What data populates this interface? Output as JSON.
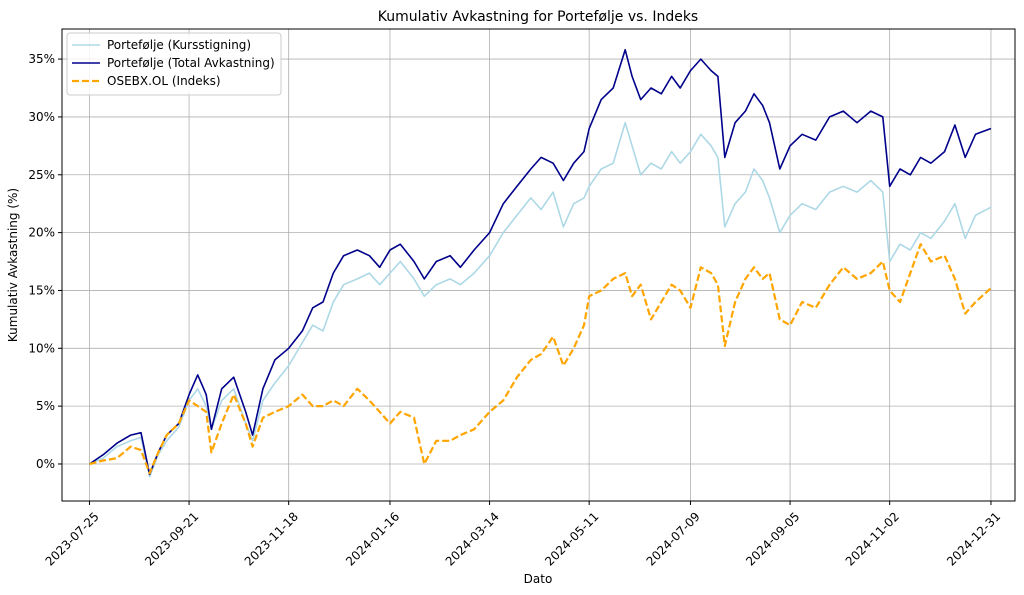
{
  "chart_data": {
    "type": "line",
    "title": "Kumulativ Avkastning for Portefølje vs. Indeks",
    "xlabel": "Dato",
    "ylabel": "Kumulativ Avkastning (%)",
    "x_tick_labels": [
      "2023-07-25",
      "2023-09-21",
      "2023-11-18",
      "2024-01-16",
      "2024-03-14",
      "2024-05-11",
      "2024-07-09",
      "2024-09-05",
      "2024-11-02",
      "2024-12-31"
    ],
    "y_tick_labels": [
      "0%",
      "5%",
      "10%",
      "15%",
      "20%",
      "25%",
      "30%",
      "35%"
    ],
    "y_ticks": [
      0,
      5,
      10,
      15,
      20,
      25,
      30,
      35
    ],
    "xlim": [
      "2023-07-09",
      "2025-01-14"
    ],
    "ylim": [
      -3.2,
      37.6
    ],
    "grid": true,
    "legend_position": "top-left",
    "series": [
      {
        "name": "Portefølje (Kursstigning)",
        "color": "#add8e6",
        "dash": "solid",
        "points": [
          [
            "2023-07-25",
            0.0
          ],
          [
            "2023-08-02",
            0.5
          ],
          [
            "2023-08-10",
            1.5
          ],
          [
            "2023-08-18",
            2.0
          ],
          [
            "2023-08-24",
            2.3
          ],
          [
            "2023-08-29",
            -1.1
          ],
          [
            "2023-09-03",
            0.8
          ],
          [
            "2023-09-08",
            2.0
          ],
          [
            "2023-09-15",
            3.2
          ],
          [
            "2023-09-21",
            5.5
          ],
          [
            "2023-09-26",
            6.5
          ],
          [
            "2023-10-01",
            5.0
          ],
          [
            "2023-10-04",
            3.0
          ],
          [
            "2023-10-10",
            5.5
          ],
          [
            "2023-10-17",
            6.5
          ],
          [
            "2023-10-24",
            3.5
          ],
          [
            "2023-10-28",
            2.0
          ],
          [
            "2023-11-03",
            5.5
          ],
          [
            "2023-11-10",
            7.0
          ],
          [
            "2023-11-18",
            8.5
          ],
          [
            "2023-11-26",
            10.5
          ],
          [
            "2023-12-02",
            12.0
          ],
          [
            "2023-12-08",
            11.5
          ],
          [
            "2023-12-14",
            14.0
          ],
          [
            "2023-12-20",
            15.5
          ],
          [
            "2023-12-28",
            16.0
          ],
          [
            "2024-01-04",
            16.5
          ],
          [
            "2024-01-10",
            15.5
          ],
          [
            "2024-01-16",
            16.5
          ],
          [
            "2024-01-22",
            17.5
          ],
          [
            "2024-01-30",
            16.0
          ],
          [
            "2024-02-05",
            14.5
          ],
          [
            "2024-02-12",
            15.5
          ],
          [
            "2024-02-20",
            16.0
          ],
          [
            "2024-02-26",
            15.5
          ],
          [
            "2024-03-05",
            16.5
          ],
          [
            "2024-03-14",
            18.0
          ],
          [
            "2024-03-22",
            20.0
          ],
          [
            "2024-03-30",
            21.5
          ],
          [
            "2024-04-07",
            23.0
          ],
          [
            "2024-04-13",
            22.0
          ],
          [
            "2024-04-20",
            23.5
          ],
          [
            "2024-04-26",
            20.5
          ],
          [
            "2024-05-02",
            22.5
          ],
          [
            "2024-05-08",
            23.0
          ],
          [
            "2024-05-11",
            24.0
          ],
          [
            "2024-05-18",
            25.5
          ],
          [
            "2024-05-25",
            26.0
          ],
          [
            "2024-06-01",
            29.5
          ],
          [
            "2024-06-05",
            27.5
          ],
          [
            "2024-06-10",
            25.0
          ],
          [
            "2024-06-16",
            26.0
          ],
          [
            "2024-06-22",
            25.5
          ],
          [
            "2024-06-28",
            27.0
          ],
          [
            "2024-07-03",
            26.0
          ],
          [
            "2024-07-09",
            27.0
          ],
          [
            "2024-07-15",
            28.5
          ],
          [
            "2024-07-21",
            27.5
          ],
          [
            "2024-07-25",
            26.5
          ],
          [
            "2024-07-29",
            20.5
          ],
          [
            "2024-08-04",
            22.5
          ],
          [
            "2024-08-10",
            23.5
          ],
          [
            "2024-08-15",
            25.5
          ],
          [
            "2024-08-20",
            24.5
          ],
          [
            "2024-08-24",
            23.0
          ],
          [
            "2024-08-30",
            20.0
          ],
          [
            "2024-09-05",
            21.5
          ],
          [
            "2024-09-12",
            22.5
          ],
          [
            "2024-09-20",
            22.0
          ],
          [
            "2024-09-28",
            23.5
          ],
          [
            "2024-10-06",
            24.0
          ],
          [
            "2024-10-14",
            23.5
          ],
          [
            "2024-10-22",
            24.5
          ],
          [
            "2024-10-29",
            23.5
          ],
          [
            "2024-11-02",
            17.5
          ],
          [
            "2024-11-08",
            19.0
          ],
          [
            "2024-11-14",
            18.5
          ],
          [
            "2024-11-20",
            20.0
          ],
          [
            "2024-11-26",
            19.5
          ],
          [
            "2024-12-04",
            21.0
          ],
          [
            "2024-12-10",
            22.5
          ],
          [
            "2024-12-16",
            19.5
          ],
          [
            "2024-12-22",
            21.5
          ],
          [
            "2024-12-31",
            22.2
          ]
        ]
      },
      {
        "name": "Portefølje (Total Avkastning)",
        "color": "#00008b",
        "dash": "solid",
        "points": [
          [
            "2023-07-25",
            0.0
          ],
          [
            "2023-08-02",
            0.8
          ],
          [
            "2023-08-10",
            1.8
          ],
          [
            "2023-08-18",
            2.5
          ],
          [
            "2023-08-24",
            2.7
          ],
          [
            "2023-08-29",
            -0.9
          ],
          [
            "2023-09-03",
            1.0
          ],
          [
            "2023-09-08",
            2.5
          ],
          [
            "2023-09-15",
            3.5
          ],
          [
            "2023-09-21",
            6.0
          ],
          [
            "2023-09-26",
            7.7
          ],
          [
            "2023-10-01",
            6.0
          ],
          [
            "2023-10-04",
            3.0
          ],
          [
            "2023-10-10",
            6.5
          ],
          [
            "2023-10-17",
            7.5
          ],
          [
            "2023-10-24",
            4.5
          ],
          [
            "2023-10-28",
            2.5
          ],
          [
            "2023-11-03",
            6.5
          ],
          [
            "2023-11-10",
            9.0
          ],
          [
            "2023-11-18",
            10.0
          ],
          [
            "2023-11-26",
            11.5
          ],
          [
            "2023-12-02",
            13.5
          ],
          [
            "2023-12-08",
            14.0
          ],
          [
            "2023-12-14",
            16.5
          ],
          [
            "2023-12-20",
            18.0
          ],
          [
            "2023-12-28",
            18.5
          ],
          [
            "2024-01-04",
            18.0
          ],
          [
            "2024-01-10",
            17.0
          ],
          [
            "2024-01-16",
            18.5
          ],
          [
            "2024-01-22",
            19.0
          ],
          [
            "2024-01-30",
            17.5
          ],
          [
            "2024-02-05",
            16.0
          ],
          [
            "2024-02-12",
            17.5
          ],
          [
            "2024-02-20",
            18.0
          ],
          [
            "2024-02-26",
            17.0
          ],
          [
            "2024-03-05",
            18.5
          ],
          [
            "2024-03-14",
            20.0
          ],
          [
            "2024-03-22",
            22.5
          ],
          [
            "2024-03-30",
            24.0
          ],
          [
            "2024-04-07",
            25.5
          ],
          [
            "2024-04-13",
            26.5
          ],
          [
            "2024-04-20",
            26.0
          ],
          [
            "2024-04-26",
            24.5
          ],
          [
            "2024-05-02",
            26.0
          ],
          [
            "2024-05-08",
            27.0
          ],
          [
            "2024-05-11",
            29.0
          ],
          [
            "2024-05-18",
            31.5
          ],
          [
            "2024-05-25",
            32.5
          ],
          [
            "2024-06-01",
            35.8
          ],
          [
            "2024-06-05",
            33.5
          ],
          [
            "2024-06-10",
            31.5
          ],
          [
            "2024-06-16",
            32.5
          ],
          [
            "2024-06-22",
            32.0
          ],
          [
            "2024-06-28",
            33.5
          ],
          [
            "2024-07-03",
            32.5
          ],
          [
            "2024-07-09",
            34.0
          ],
          [
            "2024-07-15",
            35.0
          ],
          [
            "2024-07-21",
            34.0
          ],
          [
            "2024-07-25",
            33.5
          ],
          [
            "2024-07-29",
            26.5
          ],
          [
            "2024-08-04",
            29.5
          ],
          [
            "2024-08-10",
            30.5
          ],
          [
            "2024-08-15",
            32.0
          ],
          [
            "2024-08-20",
            31.0
          ],
          [
            "2024-08-24",
            29.5
          ],
          [
            "2024-08-30",
            25.5
          ],
          [
            "2024-09-05",
            27.5
          ],
          [
            "2024-09-12",
            28.5
          ],
          [
            "2024-09-20",
            28.0
          ],
          [
            "2024-09-28",
            30.0
          ],
          [
            "2024-10-06",
            30.5
          ],
          [
            "2024-10-14",
            29.5
          ],
          [
            "2024-10-22",
            30.5
          ],
          [
            "2024-10-29",
            30.0
          ],
          [
            "2024-11-02",
            24.0
          ],
          [
            "2024-11-08",
            25.5
          ],
          [
            "2024-11-14",
            25.0
          ],
          [
            "2024-11-20",
            26.5
          ],
          [
            "2024-11-26",
            26.0
          ],
          [
            "2024-12-04",
            27.0
          ],
          [
            "2024-12-10",
            29.3
          ],
          [
            "2024-12-16",
            26.5
          ],
          [
            "2024-12-22",
            28.5
          ],
          [
            "2024-12-31",
            29.0
          ]
        ]
      },
      {
        "name": "OSEBX.OL (Indeks)",
        "color": "#ffa500",
        "dash": "dashed",
        "points": [
          [
            "2023-07-25",
            0.0
          ],
          [
            "2023-08-02",
            0.3
          ],
          [
            "2023-08-10",
            0.5
          ],
          [
            "2023-08-18",
            1.5
          ],
          [
            "2023-08-24",
            1.2
          ],
          [
            "2023-08-29",
            -0.8
          ],
          [
            "2023-09-03",
            1.0
          ],
          [
            "2023-09-08",
            2.5
          ],
          [
            "2023-09-15",
            3.5
          ],
          [
            "2023-09-21",
            5.5
          ],
          [
            "2023-09-26",
            5.0
          ],
          [
            "2023-10-01",
            4.5
          ],
          [
            "2023-10-04",
            1.0
          ],
          [
            "2023-10-10",
            3.5
          ],
          [
            "2023-10-17",
            6.0
          ],
          [
            "2023-10-24",
            3.5
          ],
          [
            "2023-10-28",
            1.5
          ],
          [
            "2023-11-03",
            4.0
          ],
          [
            "2023-11-10",
            4.5
          ],
          [
            "2023-11-18",
            5.0
          ],
          [
            "2023-11-26",
            6.0
          ],
          [
            "2023-12-02",
            5.0
          ],
          [
            "2023-12-08",
            5.0
          ],
          [
            "2023-12-14",
            5.5
          ],
          [
            "2023-12-20",
            5.0
          ],
          [
            "2023-12-28",
            6.5
          ],
          [
            "2024-01-04",
            5.5
          ],
          [
            "2024-01-10",
            4.5
          ],
          [
            "2024-01-16",
            3.5
          ],
          [
            "2024-01-22",
            4.5
          ],
          [
            "2024-01-30",
            4.0
          ],
          [
            "2024-02-05",
            0.0
          ],
          [
            "2024-02-12",
            2.0
          ],
          [
            "2024-02-20",
            2.0
          ],
          [
            "2024-02-26",
            2.5
          ],
          [
            "2024-03-05",
            3.0
          ],
          [
            "2024-03-14",
            4.5
          ],
          [
            "2024-03-22",
            5.5
          ],
          [
            "2024-03-30",
            7.5
          ],
          [
            "2024-04-07",
            9.0
          ],
          [
            "2024-04-13",
            9.5
          ],
          [
            "2024-04-20",
            11.0
          ],
          [
            "2024-04-26",
            8.5
          ],
          [
            "2024-05-02",
            10.0
          ],
          [
            "2024-05-08",
            12.0
          ],
          [
            "2024-05-11",
            14.5
          ],
          [
            "2024-05-18",
            15.0
          ],
          [
            "2024-05-25",
            16.0
          ],
          [
            "2024-06-01",
            16.5
          ],
          [
            "2024-06-05",
            14.5
          ],
          [
            "2024-06-10",
            15.5
          ],
          [
            "2024-06-16",
            12.5
          ],
          [
            "2024-06-22",
            14.0
          ],
          [
            "2024-06-28",
            15.5
          ],
          [
            "2024-07-03",
            15.0
          ],
          [
            "2024-07-09",
            13.5
          ],
          [
            "2024-07-15",
            17.0
          ],
          [
            "2024-07-21",
            16.5
          ],
          [
            "2024-07-25",
            15.5
          ],
          [
            "2024-07-29",
            10.2
          ],
          [
            "2024-08-04",
            14.0
          ],
          [
            "2024-08-10",
            16.0
          ],
          [
            "2024-08-15",
            17.0
          ],
          [
            "2024-08-20",
            16.0
          ],
          [
            "2024-08-24",
            16.5
          ],
          [
            "2024-08-30",
            12.5
          ],
          [
            "2024-09-05",
            12.0
          ],
          [
            "2024-09-12",
            14.0
          ],
          [
            "2024-09-20",
            13.5
          ],
          [
            "2024-09-28",
            15.5
          ],
          [
            "2024-10-06",
            17.0
          ],
          [
            "2024-10-14",
            16.0
          ],
          [
            "2024-10-22",
            16.5
          ],
          [
            "2024-10-29",
            17.5
          ],
          [
            "2024-11-02",
            15.0
          ],
          [
            "2024-11-08",
            14.0
          ],
          [
            "2024-11-14",
            16.5
          ],
          [
            "2024-11-20",
            19.0
          ],
          [
            "2024-11-26",
            17.5
          ],
          [
            "2024-12-04",
            18.0
          ],
          [
            "2024-12-10",
            16.0
          ],
          [
            "2024-12-16",
            13.0
          ],
          [
            "2024-12-22",
            14.0
          ],
          [
            "2024-12-31",
            15.2
          ]
        ]
      }
    ]
  }
}
